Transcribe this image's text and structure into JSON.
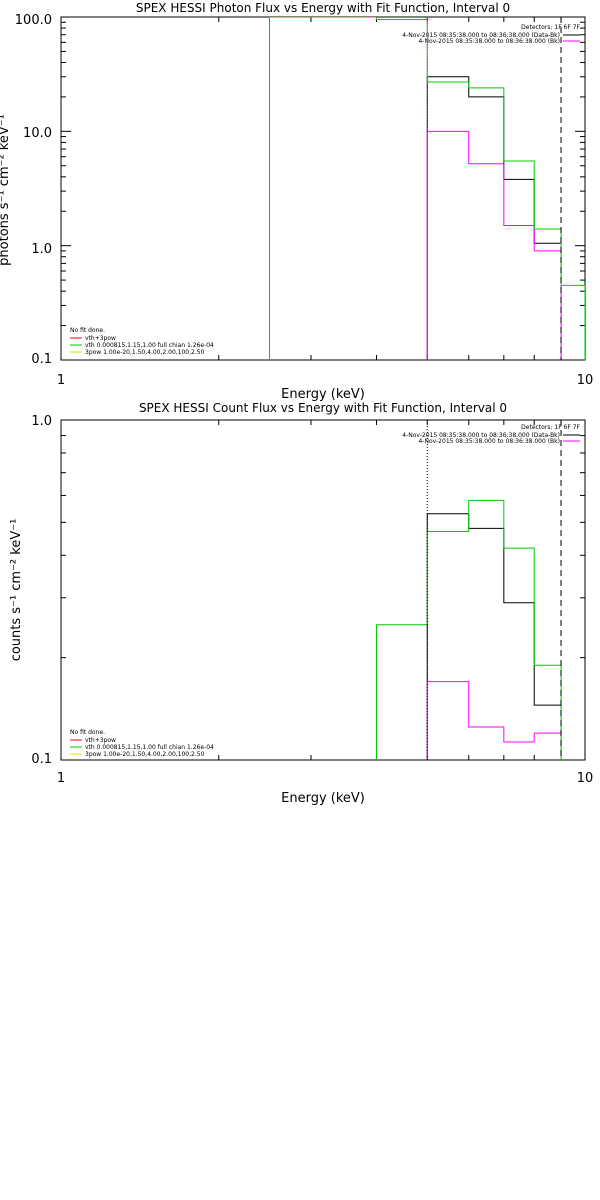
{
  "chart_data": [
    {
      "type": "line",
      "step": true,
      "title": "SPEX HESSI Photon Flux vs Energy with Fit Function, Interval 0",
      "xlabel": "Energy (keV)",
      "ylabel": "photons s⁻¹ cm⁻² keV⁻¹",
      "xscale": "log",
      "yscale": "log",
      "xlim": [
        1,
        10
      ],
      "ylim": [
        0.1,
        100
      ],
      "xticks": [
        "1",
        "10"
      ],
      "yticks": [
        "0.1",
        "1.0",
        "10.0",
        "100.0"
      ],
      "detectors_label": "Detectors: 1F 6F 7F",
      "legend_right": [
        {
          "text": "4-Nov-2015 08:35:38.000 to 08:36:38.000 (Data-Bk)",
          "color": "#000000"
        },
        {
          "text": "4-Nov-2015 08:35:38.000 to 08:36:38.000 (Bk)",
          "color": "#ff00ff"
        }
      ],
      "legend_left": [
        {
          "text": "No fit done.",
          "color": null
        },
        {
          "text": "vth+3pow",
          "color": "#ff0000"
        },
        {
          "text": "vth 0.000815,1.15,1.00  full chian 1.26e-04",
          "color": "#00cc00"
        },
        {
          "text": "3pow 1.00e-20,1.50,4.00,2.00,100,2.50",
          "color": "#e0e000"
        }
      ],
      "series": [
        {
          "role": "data-bk",
          "color": "#000000",
          "edges": [
            5.0,
            6.0,
            7.0,
            8.0,
            9.0
          ],
          "values": [
            30,
            20,
            3.8,
            1.05
          ]
        },
        {
          "role": "bk",
          "color": "#ff00ff",
          "edges": [
            5.0,
            6.0,
            7.0,
            8.0,
            9.0
          ],
          "values": [
            10,
            5.2,
            1.5,
            0.9
          ]
        },
        {
          "role": "fit",
          "color": "#00cc00",
          "edges": [
            2.5,
            4.0,
            5.0,
            6.0,
            7.0,
            8.0,
            9.0,
            10.0
          ],
          "values": [
            100,
            95,
            27,
            24,
            5.5,
            1.4,
            0.45
          ]
        }
      ],
      "vlines": [
        {
          "x": 5.0,
          "style": "dotted",
          "color": "#ff00ff"
        },
        {
          "x": 9.0,
          "style": "dashed",
          "color": "#000000"
        }
      ]
    },
    {
      "type": "line",
      "step": true,
      "title": "SPEX HESSI Count Flux vs Energy with Fit Function, Interval 0",
      "xlabel": "Energy (keV)",
      "ylabel": "counts s⁻¹ cm⁻² keV⁻¹",
      "xscale": "log",
      "yscale": "log",
      "xlim": [
        1,
        10
      ],
      "ylim": [
        0.1,
        1.0
      ],
      "xticks": [
        "1",
        "10"
      ],
      "yticks": [
        "0.1",
        "1.0"
      ],
      "detectors_label": "Detectors: 1F 6F 7F",
      "legend_right": [
        {
          "text": "4-Nov-2015 08:35:38.000 to 08:36:38.000 (Data-Bk)",
          "color": "#000000"
        },
        {
          "text": "4-Nov-2015 08:35:38.000 to 08:36:38.000 (Bk)",
          "color": "#ff00ff"
        }
      ],
      "legend_left": [
        {
          "text": "No fit done.",
          "color": null
        },
        {
          "text": "vth+3pow",
          "color": "#ff0000"
        },
        {
          "text": "vth 0.000815,1.15,1.00  full chian 1.26e-04",
          "color": "#00cc00"
        },
        {
          "text": "3pow 1.00e-20,1.50,4.00,2.00,100,2.50",
          "color": "#e0e000"
        }
      ],
      "series": [
        {
          "role": "data-bk",
          "color": "#000000",
          "edges": [
            5.0,
            6.0,
            7.0,
            8.0,
            9.0
          ],
          "values": [
            0.53,
            0.48,
            0.29,
            0.145
          ]
        },
        {
          "role": "bk",
          "color": "#ff00ff",
          "edges": [
            5.0,
            6.0,
            7.0,
            8.0,
            9.0
          ],
          "values": [
            0.17,
            0.125,
            0.113,
            0.12
          ]
        },
        {
          "role": "fit",
          "color": "#00cc00",
          "edges": [
            4.0,
            5.0,
            6.0,
            7.0,
            8.0,
            9.0
          ],
          "values": [
            0.25,
            0.47,
            0.58,
            0.42,
            0.19
          ]
        }
      ],
      "vlines": [
        {
          "x": 5.0,
          "style": "dotted",
          "color": "#000000"
        },
        {
          "x": 9.0,
          "style": "dashed",
          "color": "#000000"
        }
      ]
    }
  ]
}
